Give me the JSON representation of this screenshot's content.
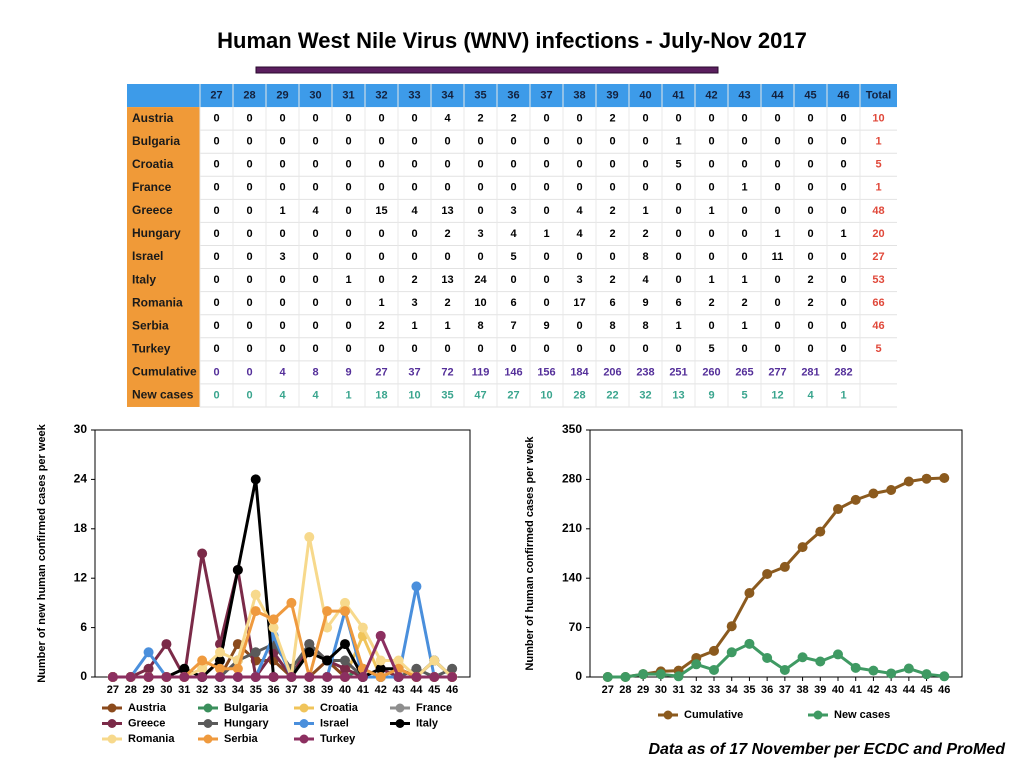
{
  "title": "Human West Nile Virus (WNV) infections - July-Nov 2017",
  "note": "Data as of 17 November per ECDC and ProMed",
  "table": {
    "columns": [
      27,
      28,
      29,
      30,
      31,
      32,
      33,
      34,
      35,
      36,
      37,
      38,
      39,
      40,
      41,
      42,
      43,
      44,
      45,
      46,
      "Total"
    ],
    "rows": [
      {
        "label": "Austria",
        "values": [
          0,
          0,
          0,
          0,
          0,
          0,
          0,
          4,
          2,
          2,
          0,
          0,
          2,
          0,
          0,
          0,
          0,
          0,
          0,
          0
        ],
        "total": 10
      },
      {
        "label": "Bulgaria",
        "values": [
          0,
          0,
          0,
          0,
          0,
          0,
          0,
          0,
          0,
          0,
          0,
          0,
          0,
          0,
          1,
          0,
          0,
          0,
          0,
          0
        ],
        "total": 1
      },
      {
        "label": "Croatia",
        "values": [
          0,
          0,
          0,
          0,
          0,
          0,
          0,
          0,
          0,
          0,
          0,
          0,
          0,
          0,
          5,
          0,
          0,
          0,
          0,
          0
        ],
        "total": 5
      },
      {
        "label": "France",
        "values": [
          0,
          0,
          0,
          0,
          0,
          0,
          0,
          0,
          0,
          0,
          0,
          0,
          0,
          0,
          0,
          0,
          1,
          0,
          0,
          0
        ],
        "total": 1
      },
      {
        "label": "Greece",
        "values": [
          0,
          0,
          1,
          4,
          0,
          15,
          4,
          13,
          0,
          3,
          0,
          4,
          2,
          1,
          0,
          1,
          0,
          0,
          0,
          0
        ],
        "total": 48
      },
      {
        "label": "Hungary",
        "values": [
          0,
          0,
          0,
          0,
          0,
          0,
          0,
          2,
          3,
          4,
          1,
          4,
          2,
          2,
          0,
          0,
          0,
          1,
          0,
          1
        ],
        "total": 20
      },
      {
        "label": "Israel",
        "values": [
          0,
          0,
          3,
          0,
          0,
          0,
          0,
          0,
          0,
          5,
          0,
          0,
          0,
          8,
          0,
          0,
          0,
          11,
          0,
          0
        ],
        "total": 27
      },
      {
        "label": "Italy",
        "values": [
          0,
          0,
          0,
          0,
          1,
          0,
          2,
          13,
          24,
          0,
          0,
          3,
          2,
          4,
          0,
          1,
          1,
          0,
          2,
          0
        ],
        "total": 53
      },
      {
        "label": "Romania",
        "values": [
          0,
          0,
          0,
          0,
          0,
          1,
          3,
          2,
          10,
          6,
          0,
          17,
          6,
          9,
          6,
          2,
          2,
          0,
          2,
          0
        ],
        "total": 66
      },
      {
        "label": "Serbia",
        "values": [
          0,
          0,
          0,
          0,
          0,
          2,
          1,
          1,
          8,
          7,
          9,
          0,
          8,
          8,
          1,
          0,
          1,
          0,
          0,
          0
        ],
        "total": 46
      },
      {
        "label": "Turkey",
        "values": [
          0,
          0,
          0,
          0,
          0,
          0,
          0,
          0,
          0,
          0,
          0,
          0,
          0,
          0,
          0,
          5,
          0,
          0,
          0,
          0
        ],
        "total": 5
      },
      {
        "label": "Cumulative",
        "values": [
          0,
          0,
          4,
          8,
          9,
          27,
          37,
          72,
          119,
          146,
          156,
          184,
          206,
          238,
          251,
          260,
          265,
          277,
          281,
          282
        ]
      },
      {
        "label": "New cases",
        "values": [
          0,
          0,
          4,
          4,
          1,
          18,
          10,
          35,
          47,
          27,
          10,
          28,
          22,
          32,
          13,
          9,
          5,
          12,
          4,
          1
        ]
      }
    ]
  },
  "chart_data": [
    {
      "type": "line",
      "y_label": "Number of new human confirmed cases per week",
      "x": [
        27,
        28,
        29,
        30,
        31,
        32,
        33,
        34,
        35,
        36,
        37,
        38,
        39,
        40,
        41,
        42,
        43,
        44,
        45,
        46
      ],
      "xlim": [
        26,
        47
      ],
      "xticks": [
        27,
        28,
        29,
        30,
        31,
        32,
        33,
        34,
        35,
        36,
        37,
        38,
        39,
        40,
        41,
        42,
        43,
        44,
        45,
        46
      ],
      "ylim": [
        0,
        30
      ],
      "yticks": [
        0,
        6,
        12,
        18,
        24,
        30
      ],
      "series": [
        {
          "name": "Austria",
          "color": "#8b4a1c",
          "values": [
            0,
            0,
            0,
            0,
            0,
            0,
            0,
            4,
            2,
            2,
            0,
            0,
            2,
            0,
            0,
            0,
            0,
            0,
            0,
            0
          ]
        },
        {
          "name": "Bulgaria",
          "color": "#3b8f5c",
          "values": [
            0,
            0,
            0,
            0,
            0,
            0,
            0,
            0,
            0,
            0,
            0,
            0,
            0,
            0,
            1,
            0,
            0,
            0,
            0,
            0
          ]
        },
        {
          "name": "Croatia",
          "color": "#f0c45a",
          "values": [
            0,
            0,
            0,
            0,
            0,
            0,
            0,
            0,
            0,
            0,
            0,
            0,
            0,
            0,
            5,
            0,
            0,
            0,
            0,
            0
          ]
        },
        {
          "name": "France",
          "color": "#8e8e8e",
          "values": [
            0,
            0,
            0,
            0,
            0,
            0,
            0,
            0,
            0,
            0,
            0,
            0,
            0,
            0,
            0,
            0,
            1,
            0,
            0,
            0
          ]
        },
        {
          "name": "Greece",
          "color": "#7b2a48",
          "values": [
            0,
            0,
            1,
            4,
            0,
            15,
            4,
            13,
            0,
            3,
            0,
            4,
            2,
            1,
            0,
            1,
            0,
            0,
            0,
            0
          ]
        },
        {
          "name": "Hungary",
          "color": "#5a5a5a",
          "values": [
            0,
            0,
            0,
            0,
            0,
            0,
            0,
            2,
            3,
            4,
            1,
            4,
            2,
            2,
            0,
            0,
            0,
            1,
            0,
            1
          ]
        },
        {
          "name": "Israel",
          "color": "#4a8fdc",
          "values": [
            0,
            0,
            3,
            0,
            0,
            0,
            0,
            0,
            0,
            5,
            0,
            0,
            0,
            8,
            0,
            0,
            0,
            11,
            0,
            0
          ]
        },
        {
          "name": "Italy",
          "color": "#000000",
          "values": [
            0,
            0,
            0,
            0,
            1,
            0,
            2,
            13,
            24,
            0,
            0,
            3,
            2,
            4,
            0,
            1,
            1,
            0,
            2,
            0
          ]
        },
        {
          "name": "Romania",
          "color": "#f7d98c",
          "values": [
            0,
            0,
            0,
            0,
            0,
            1,
            3,
            2,
            10,
            6,
            0,
            17,
            6,
            9,
            6,
            2,
            2,
            0,
            2,
            0
          ]
        },
        {
          "name": "Serbia",
          "color": "#ef9a3e",
          "values": [
            0,
            0,
            0,
            0,
            0,
            2,
            1,
            1,
            8,
            7,
            9,
            0,
            8,
            8,
            1,
            0,
            1,
            0,
            0,
            0
          ]
        },
        {
          "name": "Turkey",
          "color": "#8c2f60",
          "values": [
            0,
            0,
            0,
            0,
            0,
            0,
            0,
            0,
            0,
            0,
            0,
            0,
            0,
            0,
            0,
            5,
            0,
            0,
            0,
            0
          ]
        }
      ]
    },
    {
      "type": "line",
      "y_label": "Number of human confirmed cases per week",
      "x": [
        27,
        28,
        29,
        30,
        31,
        32,
        33,
        34,
        35,
        36,
        37,
        38,
        39,
        40,
        41,
        42,
        43,
        44,
        45,
        46
      ],
      "xlim": [
        26,
        47
      ],
      "xticks": [
        27,
        28,
        29,
        30,
        31,
        32,
        33,
        34,
        35,
        36,
        37,
        38,
        39,
        40,
        41,
        42,
        43,
        44,
        45,
        46
      ],
      "ylim": [
        0,
        350
      ],
      "yticks": [
        0,
        70,
        140,
        210,
        280,
        350
      ],
      "series": [
        {
          "name": "Cumulative",
          "color": "#8b5a1e",
          "values": [
            0,
            0,
            4,
            8,
            9,
            27,
            37,
            72,
            119,
            146,
            156,
            184,
            206,
            238,
            251,
            260,
            265,
            277,
            281,
            282
          ]
        },
        {
          "name": "New cases",
          "color": "#3f9a63",
          "values": [
            0,
            0,
            4,
            4,
            1,
            18,
            10,
            35,
            47,
            27,
            10,
            28,
            22,
            32,
            13,
            9,
            5,
            12,
            4,
            1
          ]
        }
      ]
    }
  ]
}
